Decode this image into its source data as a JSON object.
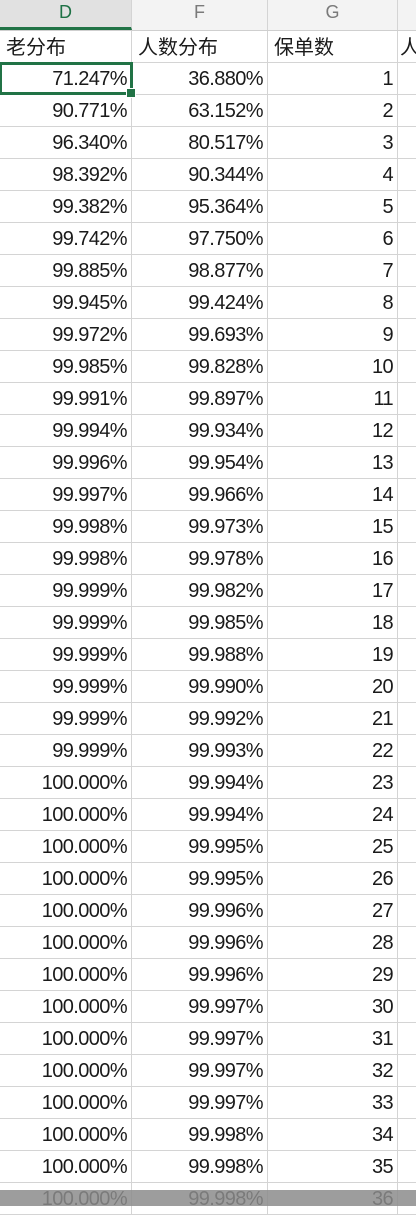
{
  "column_headers": [
    "D",
    "F",
    "G"
  ],
  "header_row": {
    "d": "老分布",
    "f": "人数分布",
    "g": "保单数",
    "h": "人"
  },
  "rows": [
    {
      "d": "71.247%",
      "f": "36.880%",
      "g": "1"
    },
    {
      "d": "90.771%",
      "f": "63.152%",
      "g": "2"
    },
    {
      "d": "96.340%",
      "f": "80.517%",
      "g": "3"
    },
    {
      "d": "98.392%",
      "f": "90.344%",
      "g": "4"
    },
    {
      "d": "99.382%",
      "f": "95.364%",
      "g": "5"
    },
    {
      "d": "99.742%",
      "f": "97.750%",
      "g": "6"
    },
    {
      "d": "99.885%",
      "f": "98.877%",
      "g": "7"
    },
    {
      "d": "99.945%",
      "f": "99.424%",
      "g": "8"
    },
    {
      "d": "99.972%",
      "f": "99.693%",
      "g": "9"
    },
    {
      "d": "99.985%",
      "f": "99.828%",
      "g": "10"
    },
    {
      "d": "99.991%",
      "f": "99.897%",
      "g": "11"
    },
    {
      "d": "99.994%",
      "f": "99.934%",
      "g": "12"
    },
    {
      "d": "99.996%",
      "f": "99.954%",
      "g": "13"
    },
    {
      "d": "99.997%",
      "f": "99.966%",
      "g": "14"
    },
    {
      "d": "99.998%",
      "f": "99.973%",
      "g": "15"
    },
    {
      "d": "99.998%",
      "f": "99.978%",
      "g": "16"
    },
    {
      "d": "99.999%",
      "f": "99.982%",
      "g": "17"
    },
    {
      "d": "99.999%",
      "f": "99.985%",
      "g": "18"
    },
    {
      "d": "99.999%",
      "f": "99.988%",
      "g": "19"
    },
    {
      "d": "99.999%",
      "f": "99.990%",
      "g": "20"
    },
    {
      "d": "99.999%",
      "f": "99.992%",
      "g": "21"
    },
    {
      "d": "99.999%",
      "f": "99.993%",
      "g": "22"
    },
    {
      "d": "100.000%",
      "f": "99.994%",
      "g": "23"
    },
    {
      "d": "100.000%",
      "f": "99.994%",
      "g": "24"
    },
    {
      "d": "100.000%",
      "f": "99.995%",
      "g": "25"
    },
    {
      "d": "100.000%",
      "f": "99.995%",
      "g": "26"
    },
    {
      "d": "100.000%",
      "f": "99.996%",
      "g": "27"
    },
    {
      "d": "100.000%",
      "f": "99.996%",
      "g": "28"
    },
    {
      "d": "100.000%",
      "f": "99.996%",
      "g": "29"
    },
    {
      "d": "100.000%",
      "f": "99.997%",
      "g": "30"
    },
    {
      "d": "100.000%",
      "f": "99.997%",
      "g": "31"
    },
    {
      "d": "100.000%",
      "f": "99.997%",
      "g": "32"
    },
    {
      "d": "100.000%",
      "f": "99.997%",
      "g": "33"
    },
    {
      "d": "100.000%",
      "f": "99.998%",
      "g": "34"
    },
    {
      "d": "100.000%",
      "f": "99.998%",
      "g": "35"
    },
    {
      "d": "100.000%",
      "f": "99.998%",
      "g": "36"
    }
  ]
}
